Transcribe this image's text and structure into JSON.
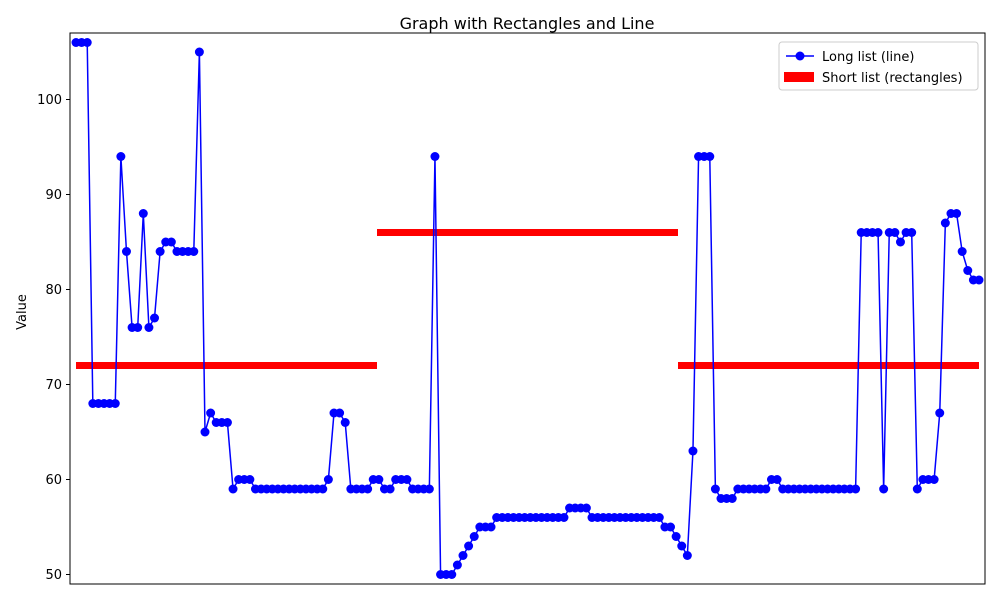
{
  "chart_data": {
    "type": "line",
    "title": "Graph with Rectangles and Line",
    "xlabel": "",
    "ylabel": "Value",
    "ylim": [
      49,
      107
    ],
    "yticks": [
      50,
      60,
      70,
      80,
      90,
      100
    ],
    "xticks_visible": false,
    "grid": false,
    "legend_position": "upper right",
    "line_series": {
      "name": "Long list (line)",
      "color": "#0000ff",
      "marker": "circle",
      "values": [
        106,
        106,
        106,
        68,
        68,
        68,
        68,
        68,
        94,
        84,
        76,
        76,
        88,
        76,
        77,
        84,
        85,
        85,
        84,
        84,
        84,
        84,
        105,
        65,
        67,
        66,
        66,
        66,
        59,
        60,
        60,
        60,
        59,
        59,
        59,
        59,
        59,
        59,
        59,
        59,
        59,
        59,
        59,
        59,
        59,
        60,
        67,
        67,
        66,
        59,
        59,
        59,
        59,
        60,
        60,
        59,
        59,
        60,
        60,
        60,
        59,
        59,
        59,
        59,
        94,
        50,
        50,
        50,
        51,
        52,
        53,
        54,
        55,
        55,
        55,
        56,
        56,
        56,
        56,
        56,
        56,
        56,
        56,
        56,
        56,
        56,
        56,
        56,
        57,
        57,
        57,
        57,
        56,
        56,
        56,
        56,
        56,
        56,
        56,
        56,
        56,
        56,
        56,
        56,
        56,
        55,
        55,
        54,
        53,
        52,
        63,
        94,
        94,
        94,
        59,
        58,
        58,
        58,
        59,
        59,
        59,
        59,
        59,
        59,
        60,
        60,
        59,
        59,
        59,
        59,
        59,
        59,
        59,
        59,
        59,
        59,
        59,
        59,
        59,
        59,
        86,
        86,
        86,
        86,
        59,
        86,
        86,
        85,
        86,
        86,
        59,
        60,
        60,
        60,
        67,
        87,
        88,
        88,
        84,
        82,
        81,
        81
      ]
    },
    "rect_series": {
      "name": "Short list (rectangles)",
      "color": "#ff0000",
      "values": [
        72,
        86,
        72
      ]
    }
  }
}
